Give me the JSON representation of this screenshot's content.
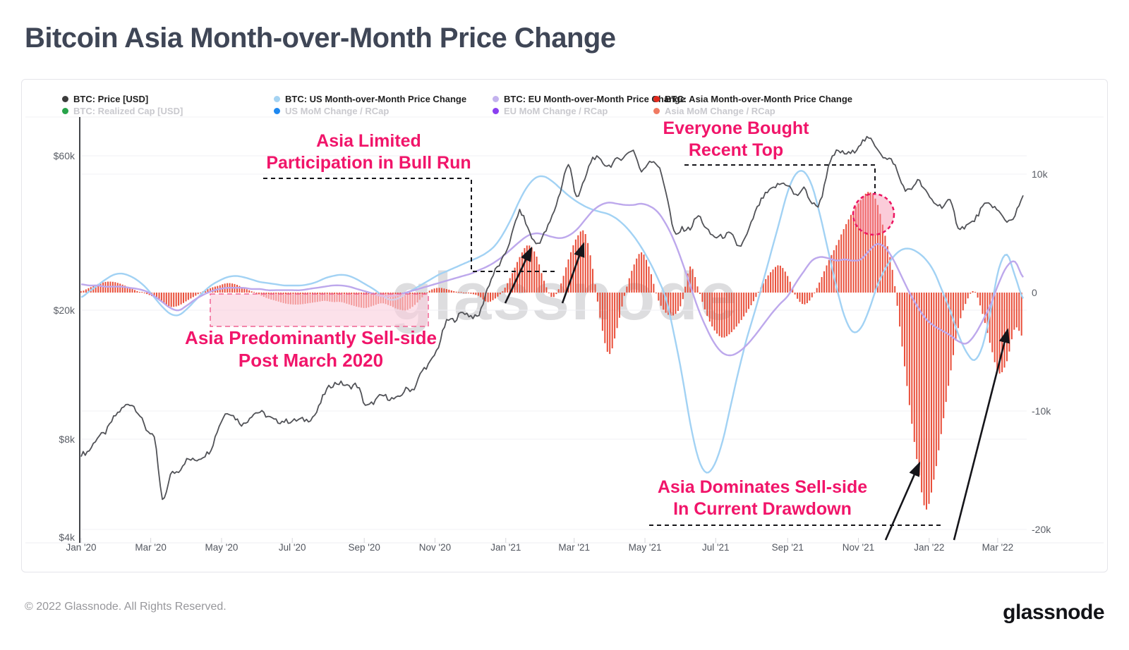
{
  "title": "Bitcoin Asia Month-over-Month Price Change",
  "watermark": "glassnode",
  "footer": {
    "copyright": "© 2022 Glassnode. All Rights Reserved.",
    "logo": "glassnode"
  },
  "colors": {
    "price": "#515257",
    "us": "#a2d2f4",
    "eu": "#bda8ec",
    "asia": "#e8462f",
    "annotation": "#f1156a",
    "grid": "#f0f0f4",
    "axis_line": "#44464a",
    "axis_text": "#5a5e66",
    "shape_black": "#15151a",
    "shape_pink": "#ec1561",
    "box_pink_fill": "rgba(250,205,220,0.6)",
    "box_pink_border": "#f06292"
  },
  "legend": {
    "rows": [
      [
        {
          "label": "BTC: Price [USD]",
          "color": "#3b3b3b",
          "muted": false
        },
        {
          "label": "BTC: US Month-over-Month Price Change",
          "color": "#a5d3f2",
          "muted": false
        },
        {
          "label": "BTC: EU Month-over-Month Price Change",
          "color": "#c3b2ee",
          "muted": false
        },
        {
          "label": "BTC: Asia Month-over-Month Price Change",
          "color": "#e0281c",
          "muted": false
        }
      ],
      [
        {
          "label": "BTC: Realized Cap [USD]",
          "color": "#27a349",
          "muted": true
        },
        {
          "label": "US MoM Change / RCap",
          "color": "#1e88f0",
          "muted": true
        },
        {
          "label": "EU MoM Change / RCap",
          "color": "#8a3ff0",
          "muted": true
        },
        {
          "label": "Asia MoM Change / RCap",
          "color": "#f07a62",
          "muted": true
        }
      ]
    ]
  },
  "annotations": {
    "bull_run": {
      "line1": "Asia Limited",
      "line2": "Participation in Bull Run"
    },
    "recent_top": {
      "line1": "Everyone Bought",
      "line2": "Recent Top"
    },
    "sell_side": {
      "line1": "Asia Predominantly Sell-side",
      "line2": "Post March 2020"
    },
    "drawdown": {
      "line1": "Asia Dominates Sell-side",
      "line2": "In Current Drawdown"
    }
  },
  "chart_data": {
    "type": "mixed",
    "title": "Bitcoin Asia Month-over-Month Price Change",
    "x_unit": "weeks from Jan 2020 to late Mar 2022",
    "x_tick_labels": [
      "Jan '20",
      "Mar '20",
      "May '20",
      "Jul '20",
      "Sep '20",
      "Nov '20",
      "Jan '21",
      "Mar '21",
      "May '21",
      "Jul '21",
      "Sep '21",
      "Nov '21",
      "Jan '22",
      "Mar '22"
    ],
    "x_tick_index": [
      0,
      8.57,
      17.29,
      26,
      34.86,
      43.57,
      52.29,
      60.71,
      69.43,
      78.14,
      87,
      95.71,
      104.43,
      112.86
    ],
    "left_axis": {
      "scale": "log",
      "tick_labels": [
        "$60k",
        "$20k",
        "$8k",
        "$4k"
      ],
      "tick_values_usd": [
        60000,
        20000,
        8000,
        4000
      ],
      "range_usd": [
        3800,
        75000
      ]
    },
    "right_axis": {
      "scale": "linear",
      "tick_labels": [
        "10k",
        "0",
        "-10k",
        "-20k"
      ],
      "tick_values": [
        10000,
        0,
        -10000,
        -20000
      ],
      "range": [
        -21000,
        12500
      ]
    },
    "grid": true,
    "legend_position": "top",
    "series": [
      {
        "name": "BTC: Price [USD]",
        "type": "line",
        "axis": "left",
        "unit": "USD thousands",
        "color": "#515257",
        "values": [
          7.2,
          7.4,
          8.1,
          8.4,
          9.3,
          9.9,
          10.3,
          9.7,
          8.6,
          8.0,
          5.2,
          6.2,
          6.4,
          6.9,
          6.9,
          7.1,
          7.5,
          8.8,
          9.7,
          9.3,
          8.9,
          9.5,
          9.7,
          9.4,
          9.1,
          9.1,
          9.1,
          9.2,
          9.2,
          9.7,
          11.1,
          11.8,
          11.9,
          11.6,
          11.7,
          10.2,
          10.4,
          10.9,
          10.7,
          10.7,
          11.4,
          11.5,
          13.0,
          13.8,
          15.5,
          18.4,
          18.7,
          19.7,
          19.2,
          19.4,
          23.2,
          26.5,
          29.0,
          33.9,
          40.2,
          35.8,
          32.1,
          34.3,
          38.9,
          46.4,
          55.9,
          45.1,
          50.4,
          58.9,
          57.5,
          55.8,
          58.2,
          59.8,
          62.2,
          53.5,
          57.8,
          55.9,
          46.7,
          34.7,
          35.6,
          35.8,
          39.0,
          35.5,
          33.7,
          33.8,
          34.2,
          31.5,
          34.2,
          39.9,
          44.6,
          47.0,
          48.9,
          48.8,
          45.1,
          47.3,
          42.8,
          43.2,
          54.7,
          61.5,
          60.9,
          61.3,
          65.5,
          67.5,
          63.6,
          58.7,
          57.3,
          49.4,
          46.7,
          50.1,
          46.3,
          43.1,
          41.9,
          43.1,
          36.3,
          36.5,
          37.9,
          41.5,
          42.4,
          40.1,
          37.7,
          39.4,
          44.5
        ]
      },
      {
        "name": "BTC: US Month-over-Month Price Change",
        "type": "line",
        "axis": "right",
        "unit": "thousands",
        "color": "#a2d2f4",
        "values": [
          -0.4,
          0.1,
          0.6,
          1.1,
          1.5,
          1.6,
          1.4,
          1.0,
          0.4,
          -0.4,
          -1.2,
          -1.8,
          -1.9,
          -1.4,
          -0.7,
          0.0,
          0.6,
          1.0,
          1.3,
          1.4,
          1.3,
          1.1,
          0.9,
          0.8,
          0.7,
          0.6,
          0.6,
          0.6,
          0.7,
          0.9,
          1.2,
          1.4,
          1.5,
          1.4,
          1.1,
          0.7,
          0.3,
          -0.2,
          -0.6,
          -0.5,
          -0.1,
          0.3,
          0.7,
          1.1,
          1.5,
          1.8,
          2.1,
          2.4,
          2.7,
          3.0,
          3.4,
          4.0,
          5.0,
          6.3,
          7.8,
          9.0,
          9.7,
          9.8,
          9.4,
          8.8,
          8.2,
          7.7,
          7.3,
          7.0,
          6.8,
          6.6,
          6.2,
          5.6,
          4.8,
          3.8,
          2.6,
          1.2,
          -0.5,
          -3.5,
          -7.0,
          -11.0,
          -14.0,
          -15.2,
          -14.5,
          -12.5,
          -9.5,
          -6.5,
          -3.8,
          -1.5,
          1.0,
          3.5,
          6.0,
          8.5,
          10.0,
          10.2,
          9.0,
          6.5,
          3.5,
          0.5,
          -2.0,
          -3.3,
          -3.0,
          -1.5,
          0.5,
          2.0,
          3.0,
          3.6,
          3.7,
          3.4,
          2.8,
          1.8,
          0.2,
          -1.5,
          -3.5,
          -5.0,
          -5.7,
          -4.5,
          -1.5,
          2.0,
          3.2,
          1.4,
          -0.5
        ]
      },
      {
        "name": "BTC: EU Month-over-Month Price Change",
        "type": "line",
        "axis": "right",
        "unit": "thousands",
        "color": "#bda8ec",
        "values": [
          0.7,
          0.6,
          0.6,
          0.5,
          0.5,
          0.5,
          0.4,
          0.3,
          0.1,
          -0.3,
          -0.8,
          -1.3,
          -1.5,
          -1.1,
          -0.6,
          -0.2,
          0.1,
          0.3,
          0.4,
          0.4,
          0.4,
          0.3,
          0.3,
          0.2,
          0.2,
          0.2,
          0.2,
          0.2,
          0.3,
          0.4,
          0.5,
          0.6,
          0.6,
          0.5,
          0.3,
          0.1,
          -0.1,
          -0.3,
          -0.3,
          -0.2,
          0.0,
          0.2,
          0.4,
          0.6,
          0.8,
          1.0,
          1.2,
          1.4,
          1.6,
          1.9,
          2.2,
          2.6,
          3.1,
          3.7,
          4.3,
          4.8,
          5.0,
          4.9,
          4.7,
          4.6,
          4.8,
          5.3,
          6.1,
          6.9,
          7.4,
          7.6,
          7.5,
          7.4,
          7.4,
          7.5,
          7.3,
          6.8,
          5.8,
          4.4,
          2.6,
          0.6,
          -1.4,
          -3.0,
          -4.3,
          -5.1,
          -5.3,
          -5.0,
          -4.4,
          -3.6,
          -2.7,
          -1.8,
          -1.0,
          -0.3,
          0.8,
          1.8,
          2.7,
          3.0,
          2.9,
          2.7,
          2.8,
          2.7,
          2.8,
          3.5,
          4.1,
          3.8,
          2.8,
          1.4,
          0.0,
          -1.2,
          -2.2,
          -2.8,
          -3.2,
          -3.6,
          -4.1,
          -4.3,
          -3.6,
          -2.4,
          -1.0,
          0.8,
          2.2,
          2.6,
          1.3
        ]
      },
      {
        "name": "BTC: Asia Month-over-Month Price Change",
        "type": "bar",
        "axis": "right",
        "unit": "thousands",
        "color": "#e8462f",
        "values": [
          0.1,
          0.4,
          0.7,
          0.9,
          0.9,
          0.7,
          0.4,
          0.1,
          -0.1,
          -0.4,
          -0.8,
          -1.2,
          -1.1,
          -0.7,
          -0.3,
          0.1,
          0.4,
          0.6,
          0.8,
          0.7,
          0.4,
          0.1,
          -0.2,
          -0.5,
          -0.7,
          -0.9,
          -1.0,
          -1.0,
          -0.9,
          -0.8,
          -0.7,
          -0.8,
          -0.8,
          -1.0,
          -1.2,
          -1.3,
          -1.1,
          -0.9,
          -1.1,
          -1.4,
          -1.5,
          -1.1,
          -0.4,
          0.2,
          0.4,
          0.3,
          0.1,
          0.0,
          -0.1,
          -0.3,
          -0.8,
          -0.5,
          0.2,
          1.5,
          3.0,
          4.0,
          3.2,
          1.0,
          -0.4,
          0.6,
          2.8,
          4.6,
          5.1,
          2.0,
          -2.5,
          -5.2,
          -3.0,
          0.0,
          2.2,
          3.4,
          2.0,
          -0.5,
          -1.7,
          -1.9,
          -0.8,
          2.2,
          0.3,
          -1.8,
          -3.2,
          -3.8,
          -3.4,
          -2.6,
          -1.6,
          -0.5,
          0.8,
          1.8,
          2.3,
          1.4,
          -0.3,
          -1.0,
          -0.4,
          1.0,
          2.6,
          4.0,
          5.5,
          6.8,
          7.8,
          8.5,
          7.6,
          4.8,
          1.5,
          -4.0,
          -9.5,
          -14.5,
          -18.3,
          -15.8,
          -11.5,
          -7.0,
          -3.0,
          -0.8,
          0.1,
          -1.8,
          -4.5,
          -6.8,
          -5.8,
          -3.0,
          -3.8
        ]
      }
    ]
  }
}
